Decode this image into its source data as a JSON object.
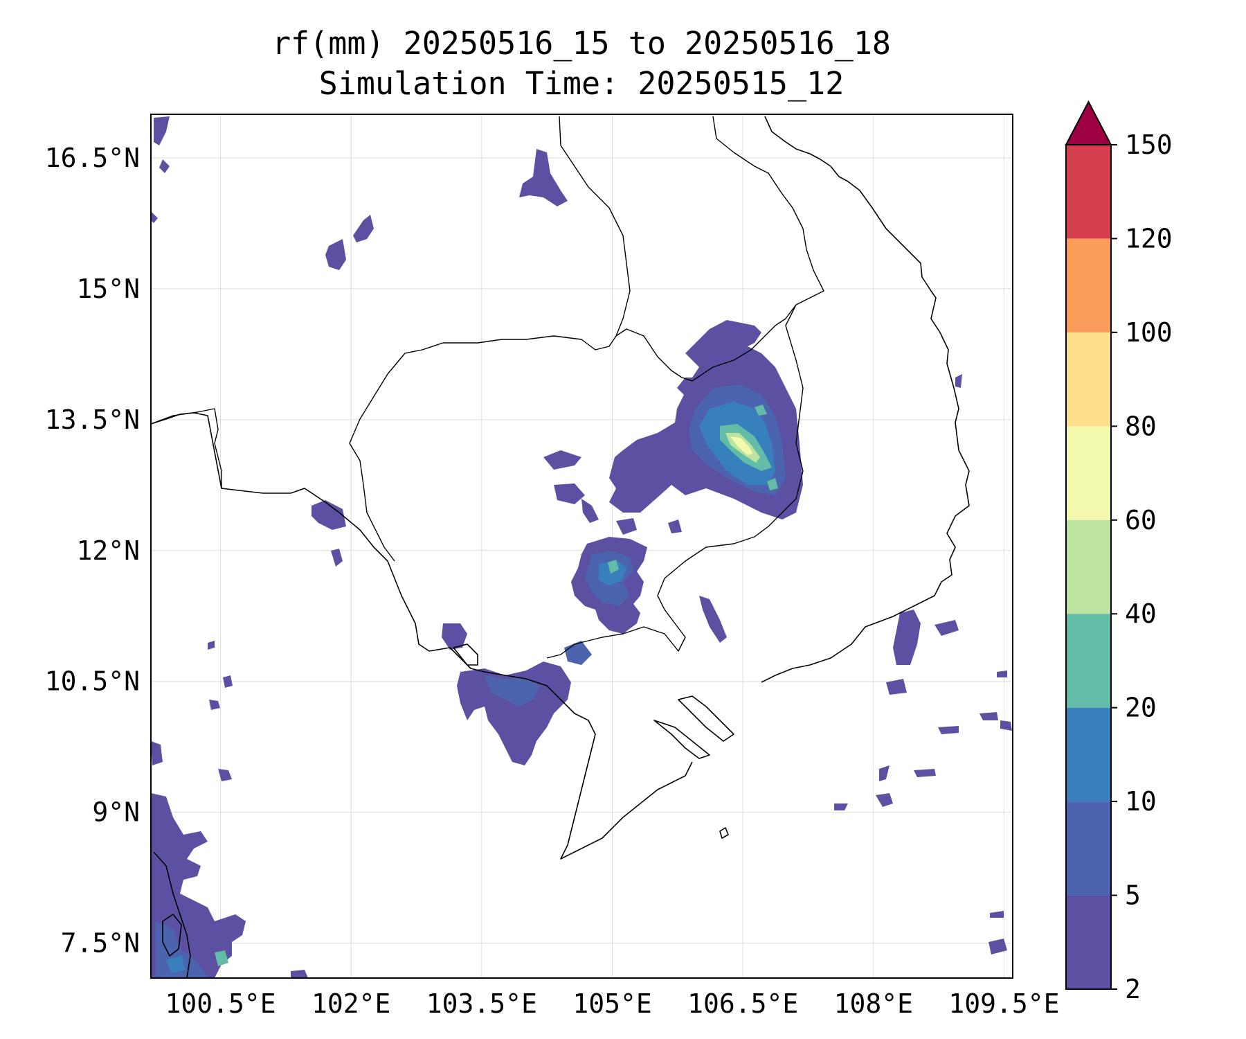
{
  "title": {
    "line1": "rf(mm) 20250516_15 to 20250516_18",
    "line2": "Simulation Time: 20250515_12"
  },
  "map": {
    "lon_range": [
      99.7,
      109.6
    ],
    "lat_range": [
      7.1,
      17.0
    ],
    "lon_ticks": [
      {
        "value": 100.5,
        "label": "100.5°E"
      },
      {
        "value": 102.0,
        "label": "102°E"
      },
      {
        "value": 103.5,
        "label": "103.5°E"
      },
      {
        "value": 105.0,
        "label": "105°E"
      },
      {
        "value": 106.5,
        "label": "106.5°E"
      },
      {
        "value": 108.0,
        "label": "108°E"
      },
      {
        "value": 109.5,
        "label": "109.5°E"
      }
    ],
    "lat_ticks": [
      {
        "value": 16.5,
        "label": "16.5°N"
      },
      {
        "value": 15.0,
        "label": "15°N"
      },
      {
        "value": 13.5,
        "label": "13.5°N"
      },
      {
        "value": 12.0,
        "label": "12°N"
      },
      {
        "value": 10.5,
        "label": "10.5°N"
      },
      {
        "value": 9.0,
        "label": "9°N"
      },
      {
        "value": 7.5,
        "label": "7.5°N"
      }
    ],
    "grid": true
  },
  "colorbar": {
    "levels": [
      "2",
      "5",
      "10",
      "20",
      "40",
      "60",
      "80",
      "100",
      "120",
      "150"
    ],
    "colors": [
      "#5c50a2",
      "#4c63ad",
      "#3880bc",
      "#62bca7",
      "#bde3a0",
      "#f3faad",
      "#fddf8b",
      "#fa9d5a",
      "#d53e4f",
      "#9e0142"
    ],
    "extend": "max"
  }
}
